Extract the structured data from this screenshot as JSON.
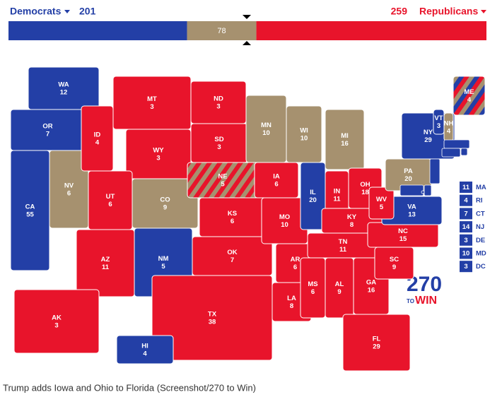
{
  "header": {
    "dem_label": "Democrats",
    "dem_total": 201,
    "tossup_total": 78,
    "rep_total": 259,
    "rep_label": "Republicans"
  },
  "colors": {
    "D": "#233fa6",
    "R": "#e8142b",
    "T": "#a6916f"
  },
  "states": [
    {
      "abbr": "WA",
      "ev": 12,
      "party": [
        "D"
      ]
    },
    {
      "abbr": "OR",
      "ev": 7,
      "party": [
        "D"
      ]
    },
    {
      "abbr": "CA",
      "ev": 55,
      "party": [
        "D"
      ]
    },
    {
      "abbr": "NV",
      "ev": 6,
      "party": [
        "T"
      ]
    },
    {
      "abbr": "ID",
      "ev": 4,
      "party": [
        "R"
      ]
    },
    {
      "abbr": "MT",
      "ev": 3,
      "party": [
        "R"
      ]
    },
    {
      "abbr": "WY",
      "ev": 3,
      "party": [
        "R"
      ]
    },
    {
      "abbr": "UT",
      "ev": 6,
      "party": [
        "R"
      ]
    },
    {
      "abbr": "CO",
      "ev": 9,
      "party": [
        "T"
      ]
    },
    {
      "abbr": "AZ",
      "ev": 11,
      "party": [
        "R"
      ]
    },
    {
      "abbr": "NM",
      "ev": 5,
      "party": [
        "D"
      ]
    },
    {
      "abbr": "ND",
      "ev": 3,
      "party": [
        "R"
      ]
    },
    {
      "abbr": "SD",
      "ev": 3,
      "party": [
        "R"
      ]
    },
    {
      "abbr": "NE",
      "ev": 5,
      "party": [
        "R",
        "T"
      ]
    },
    {
      "abbr": "KS",
      "ev": 6,
      "party": [
        "R"
      ]
    },
    {
      "abbr": "OK",
      "ev": 7,
      "party": [
        "R"
      ]
    },
    {
      "abbr": "TX",
      "ev": 38,
      "party": [
        "R"
      ]
    },
    {
      "abbr": "MN",
      "ev": 10,
      "party": [
        "T"
      ]
    },
    {
      "abbr": "IA",
      "ev": 6,
      "party": [
        "R"
      ]
    },
    {
      "abbr": "MO",
      "ev": 10,
      "party": [
        "R"
      ]
    },
    {
      "abbr": "AR",
      "ev": 6,
      "party": [
        "R"
      ]
    },
    {
      "abbr": "LA",
      "ev": 8,
      "party": [
        "R"
      ]
    },
    {
      "abbr": "WI",
      "ev": 10,
      "party": [
        "T"
      ]
    },
    {
      "abbr": "IL",
      "ev": 20,
      "party": [
        "D"
      ]
    },
    {
      "abbr": "MI",
      "ev": 16,
      "party": [
        "T"
      ]
    },
    {
      "abbr": "IN",
      "ev": 11,
      "party": [
        "R"
      ]
    },
    {
      "abbr": "OH",
      "ev": 18,
      "party": [
        "R"
      ]
    },
    {
      "abbr": "KY",
      "ev": 8,
      "party": [
        "R"
      ]
    },
    {
      "abbr": "TN",
      "ev": 11,
      "party": [
        "R"
      ]
    },
    {
      "abbr": "MS",
      "ev": 6,
      "party": [
        "R"
      ]
    },
    {
      "abbr": "AL",
      "ev": 9,
      "party": [
        "R"
      ]
    },
    {
      "abbr": "GA",
      "ev": 16,
      "party": [
        "R"
      ]
    },
    {
      "abbr": "FL",
      "ev": 29,
      "party": [
        "R"
      ]
    },
    {
      "abbr": "SC",
      "ev": 9,
      "party": [
        "R"
      ]
    },
    {
      "abbr": "NC",
      "ev": 15,
      "party": [
        "R"
      ]
    },
    {
      "abbr": "VA",
      "ev": 13,
      "party": [
        "D"
      ]
    },
    {
      "abbr": "WV",
      "ev": 5,
      "party": [
        "R"
      ]
    },
    {
      "abbr": "PA",
      "ev": 20,
      "party": [
        "T"
      ]
    },
    {
      "abbr": "NY",
      "ev": 29,
      "party": [
        "D"
      ]
    },
    {
      "abbr": "VT",
      "ev": 3,
      "party": [
        "D"
      ]
    },
    {
      "abbr": "NH",
      "ev": 4,
      "party": [
        "T"
      ]
    },
    {
      "abbr": "ME",
      "ev": 4,
      "party": [
        "D",
        "R",
        "T"
      ]
    },
    {
      "abbr": "AK",
      "ev": 3,
      "party": [
        "R"
      ]
    },
    {
      "abbr": "HI",
      "ev": 4,
      "party": [
        "D"
      ]
    }
  ],
  "small_states": [
    {
      "abbr": "MA",
      "ev": 11,
      "party": [
        "D"
      ]
    },
    {
      "abbr": "RI",
      "ev": 4,
      "party": [
        "D"
      ]
    },
    {
      "abbr": "CT",
      "ev": 7,
      "party": [
        "D"
      ]
    },
    {
      "abbr": "NJ",
      "ev": 14,
      "party": [
        "D"
      ]
    },
    {
      "abbr": "DE",
      "ev": 3,
      "party": [
        "D"
      ]
    },
    {
      "abbr": "MD",
      "ev": 10,
      "party": [
        "D"
      ]
    },
    {
      "abbr": "DC",
      "ev": 3,
      "party": [
        "D"
      ]
    }
  ],
  "logo": {
    "number": "270",
    "to": "TO",
    "win": "WIN"
  },
  "caption": "Trump adds Iowa and Ohio to Florida (Screenshot/270 to Win)"
}
